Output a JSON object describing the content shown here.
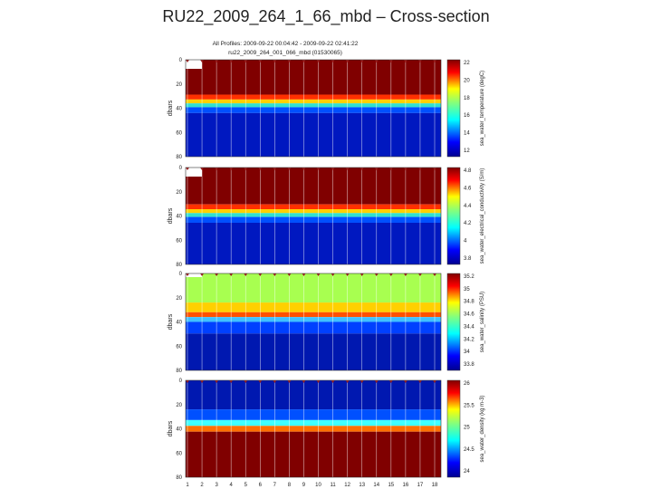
{
  "header": {
    "title": "RU22_2009_264_1_66_mbd – Cross-section"
  },
  "figure": {
    "lines": [
      "All Profiles: 2009-09-22 00:04:42 - 2009-09-22 02:41:22",
      "ru22_2009_264_001_066_mbd (01530065)"
    ],
    "x_ticks": [
      1,
      2,
      3,
      4,
      5,
      6,
      7,
      8,
      9,
      10,
      11,
      12,
      13,
      14,
      15,
      16,
      17,
      18
    ],
    "panels": [
      {
        "y_label": "dbars",
        "y_ticks": [
          0,
          20,
          40,
          60,
          80
        ],
        "colorbar_label": "sea_water_temperature (degC)",
        "colorbar_ticks": [
          22,
          20,
          18,
          16,
          14,
          12
        ]
      },
      {
        "y_label": "dbars",
        "y_ticks": [
          0,
          20,
          40,
          60,
          80
        ],
        "colorbar_label": "sea_water_electrical_conductivity (S/m)",
        "colorbar_ticks": [
          4.8,
          4.6,
          4.4,
          4.2,
          4,
          3.8
        ]
      },
      {
        "y_label": "dbars",
        "y_ticks": [
          0,
          20,
          40,
          60,
          80
        ],
        "colorbar_label": "sea_water_salinity (PSU)",
        "colorbar_ticks": [
          35.2,
          35,
          34.8,
          34.6,
          34.4,
          34.2,
          34,
          33.8
        ]
      },
      {
        "y_label": "dbars",
        "y_ticks": [
          0,
          20,
          40,
          60,
          80
        ],
        "colorbar_label": "sea_water_density (kg m-3)",
        "colorbar_ticks": [
          26,
          25.5,
          25,
          24.5,
          24
        ]
      }
    ]
  }
}
